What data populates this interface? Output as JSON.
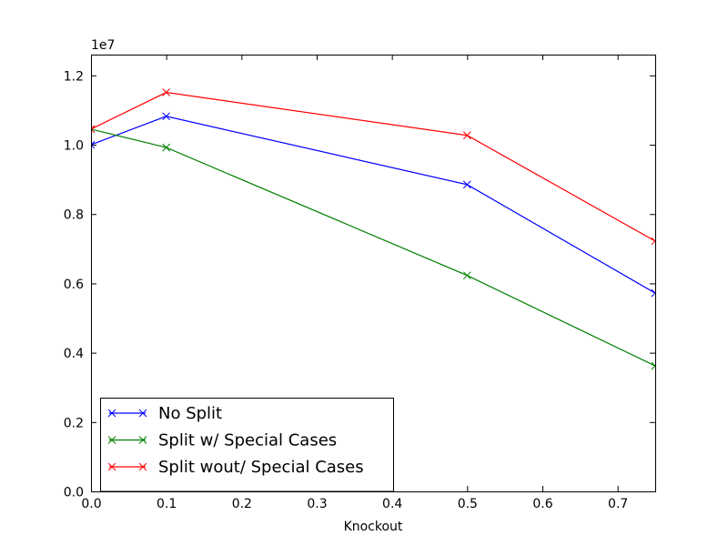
{
  "chart_data": {
    "type": "line",
    "xlabel": "Knockout",
    "ylabel": "",
    "y_multiplier_label": "1e7",
    "xlim": [
      0,
      0.75
    ],
    "ylim": [
      0,
      12600000
    ],
    "xticks": [
      {
        "value": 0.0,
        "label": "0.0"
      },
      {
        "value": 0.1,
        "label": "0.1"
      },
      {
        "value": 0.2,
        "label": "0.2"
      },
      {
        "value": 0.3,
        "label": "0.3"
      },
      {
        "value": 0.4,
        "label": "0.4"
      },
      {
        "value": 0.5,
        "label": "0.5"
      },
      {
        "value": 0.6,
        "label": "0.6"
      },
      {
        "value": 0.7,
        "label": "0.7"
      }
    ],
    "yticks": [
      {
        "value": 0,
        "label": "0.0"
      },
      {
        "value": 2000000,
        "label": "0.2"
      },
      {
        "value": 4000000,
        "label": "0.4"
      },
      {
        "value": 6000000,
        "label": "0.6"
      },
      {
        "value": 8000000,
        "label": "0.8"
      },
      {
        "value": 10000000,
        "label": "1.0"
      },
      {
        "value": 12000000,
        "label": "1.2"
      }
    ],
    "grid": false,
    "legend_position": "lower-left",
    "marker": "x",
    "x": [
      0.0,
      0.1,
      0.5,
      0.75
    ],
    "series": [
      {
        "name": "No Split",
        "color": "#0000ff",
        "values": [
          10000000,
          10820000,
          8850000,
          5720000
        ]
      },
      {
        "name": "Split w/ Special Cases",
        "color": "#008000",
        "values": [
          10450000,
          9920000,
          6230000,
          3620000
        ]
      },
      {
        "name": "Split wout/ Special Cases",
        "color": "#ff0000",
        "values": [
          10450000,
          11510000,
          10270000,
          7220000
        ]
      }
    ]
  }
}
